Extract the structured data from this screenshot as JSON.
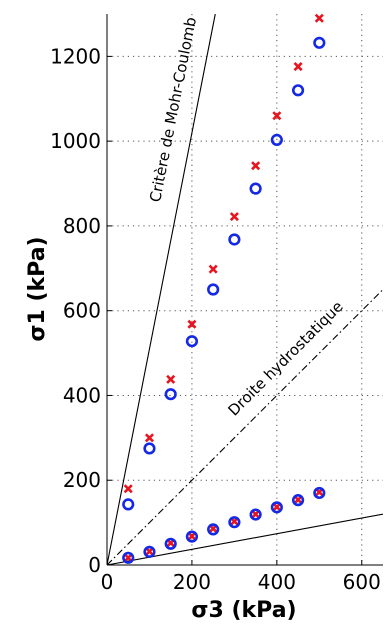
{
  "chart_data": {
    "type": "scatter",
    "title": "",
    "xlabel": "σ3 (kPa)",
    "ylabel": "σ1 (kPa)",
    "xlim": [
      0,
      650
    ],
    "ylim": [
      0,
      1300
    ],
    "x_ticks": [
      0,
      200,
      400,
      600
    ],
    "y_ticks": [
      0,
      200,
      400,
      600,
      800,
      1000,
      1200
    ],
    "grid": true,
    "grid_style": "dotted",
    "legend": "none",
    "series": [
      {
        "marker": "x",
        "color": "#e8141e",
        "x": [
          50,
          100,
          150,
          200,
          250,
          300,
          350,
          400,
          450,
          500
        ],
        "y": [
          180,
          300,
          438,
          568,
          698,
          822,
          942,
          1060,
          1176,
          1290
        ]
      },
      {
        "marker": "o",
        "color": "#1428e8",
        "x": [
          50,
          100,
          150,
          200,
          250,
          300,
          350,
          400,
          450,
          500
        ],
        "y": [
          143,
          275,
          403,
          528,
          650,
          768,
          888,
          1003,
          1120,
          1232
        ]
      },
      {
        "marker": "x",
        "color": "#e8141e",
        "x": [
          50,
          100,
          150,
          200,
          250,
          300,
          350,
          400,
          450,
          500
        ],
        "y": [
          17,
          32,
          52,
          68,
          86,
          103,
          120,
          137,
          154,
          172
        ]
      },
      {
        "marker": "o",
        "color": "#1428e8",
        "x": [
          50,
          100,
          150,
          200,
          250,
          300,
          350,
          400,
          450,
          500
        ],
        "y": [
          17,
          31,
          50,
          67,
          84,
          101,
          119,
          136,
          153,
          170
        ]
      }
    ],
    "lines": [
      {
        "style": "solid",
        "color": "#000000",
        "x": [
          0,
          255
        ],
        "y": [
          0,
          1300
        ]
      },
      {
        "style": "dashdot",
        "color": "#000000",
        "x": [
          0,
          650
        ],
        "y": [
          0,
          650
        ]
      },
      {
        "style": "solid",
        "color": "#000000",
        "x": [
          0,
          650
        ],
        "y": [
          0,
          120
        ]
      }
    ],
    "annotations": [
      {
        "text": "Critère de Mohr-Coulomb"
      },
      {
        "text": "Droite hydrostatique"
      }
    ]
  }
}
